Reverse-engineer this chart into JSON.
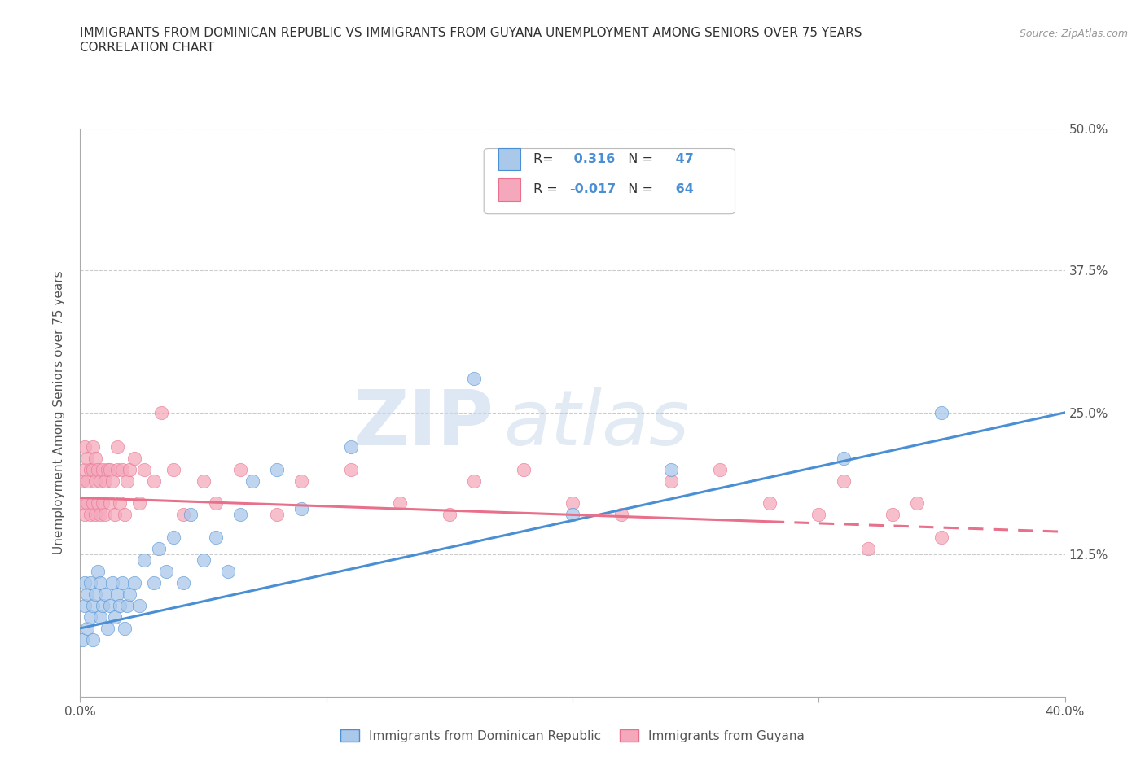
{
  "title_line1": "IMMIGRANTS FROM DOMINICAN REPUBLIC VS IMMIGRANTS FROM GUYANA UNEMPLOYMENT AMONG SENIORS OVER 75 YEARS",
  "title_line2": "CORRELATION CHART",
  "source": "Source: ZipAtlas.com",
  "ylabel": "Unemployment Among Seniors over 75 years",
  "legend_label1": "Immigrants from Dominican Republic",
  "legend_label2": "Immigrants from Guyana",
  "R1": 0.316,
  "N1": 47,
  "R2": -0.017,
  "N2": 64,
  "xlim": [
    0.0,
    0.4
  ],
  "ylim": [
    0.0,
    0.5
  ],
  "xticks": [
    0.0,
    0.1,
    0.2,
    0.3,
    0.4
  ],
  "yticks": [
    0.0,
    0.125,
    0.25,
    0.375,
    0.5
  ],
  "xticklabels": [
    "0.0%",
    "",
    "",
    "",
    "40.0%"
  ],
  "yticklabels": [
    "",
    "12.5%",
    "25.0%",
    "37.5%",
    "50.0%"
  ],
  "color_blue": "#aac8ea",
  "color_pink": "#f5a8bc",
  "line_blue": "#4a8fd4",
  "line_pink": "#e8708a",
  "watermark_ZIP": "ZIP",
  "watermark_atlas": "atlas",
  "blue_scatter_x": [
    0.001,
    0.002,
    0.002,
    0.003,
    0.003,
    0.004,
    0.004,
    0.005,
    0.005,
    0.006,
    0.007,
    0.008,
    0.008,
    0.009,
    0.01,
    0.011,
    0.012,
    0.013,
    0.014,
    0.015,
    0.016,
    0.017,
    0.018,
    0.019,
    0.02,
    0.022,
    0.024,
    0.026,
    0.03,
    0.032,
    0.035,
    0.038,
    0.042,
    0.045,
    0.05,
    0.055,
    0.06,
    0.065,
    0.07,
    0.08,
    0.09,
    0.11,
    0.16,
    0.2,
    0.24,
    0.31,
    0.35
  ],
  "blue_scatter_y": [
    0.05,
    0.08,
    0.1,
    0.06,
    0.09,
    0.07,
    0.1,
    0.08,
    0.05,
    0.09,
    0.11,
    0.07,
    0.1,
    0.08,
    0.09,
    0.06,
    0.08,
    0.1,
    0.07,
    0.09,
    0.08,
    0.1,
    0.06,
    0.08,
    0.09,
    0.1,
    0.08,
    0.12,
    0.1,
    0.13,
    0.11,
    0.14,
    0.1,
    0.16,
    0.12,
    0.14,
    0.11,
    0.16,
    0.19,
    0.2,
    0.165,
    0.22,
    0.28,
    0.16,
    0.2,
    0.21,
    0.25
  ],
  "pink_scatter_x": [
    0.001,
    0.001,
    0.002,
    0.002,
    0.002,
    0.003,
    0.003,
    0.003,
    0.004,
    0.004,
    0.005,
    0.005,
    0.005,
    0.006,
    0.006,
    0.006,
    0.007,
    0.007,
    0.008,
    0.008,
    0.009,
    0.009,
    0.01,
    0.01,
    0.011,
    0.012,
    0.012,
    0.013,
    0.014,
    0.015,
    0.015,
    0.016,
    0.017,
    0.018,
    0.019,
    0.02,
    0.022,
    0.024,
    0.026,
    0.03,
    0.033,
    0.038,
    0.042,
    0.05,
    0.055,
    0.065,
    0.08,
    0.09,
    0.11,
    0.13,
    0.15,
    0.16,
    0.18,
    0.2,
    0.22,
    0.24,
    0.26,
    0.28,
    0.3,
    0.31,
    0.32,
    0.33,
    0.34,
    0.35
  ],
  "pink_scatter_y": [
    0.17,
    0.19,
    0.16,
    0.2,
    0.22,
    0.17,
    0.19,
    0.21,
    0.16,
    0.2,
    0.17,
    0.2,
    0.22,
    0.16,
    0.19,
    0.21,
    0.17,
    0.2,
    0.16,
    0.19,
    0.17,
    0.2,
    0.16,
    0.19,
    0.2,
    0.17,
    0.2,
    0.19,
    0.16,
    0.2,
    0.22,
    0.17,
    0.2,
    0.16,
    0.19,
    0.2,
    0.21,
    0.17,
    0.2,
    0.19,
    0.25,
    0.2,
    0.16,
    0.19,
    0.17,
    0.2,
    0.16,
    0.19,
    0.2,
    0.17,
    0.16,
    0.19,
    0.2,
    0.17,
    0.16,
    0.19,
    0.2,
    0.17,
    0.16,
    0.19,
    0.13,
    0.16,
    0.17,
    0.14
  ],
  "blue_line_x0": 0.0,
  "blue_line_y0": 0.06,
  "blue_line_x1": 0.4,
  "blue_line_y1": 0.25,
  "pink_line_x0": 0.0,
  "pink_line_y0": 0.175,
  "pink_line_x1": 0.4,
  "pink_line_y1": 0.145,
  "pink_line_solid_end": 0.28
}
